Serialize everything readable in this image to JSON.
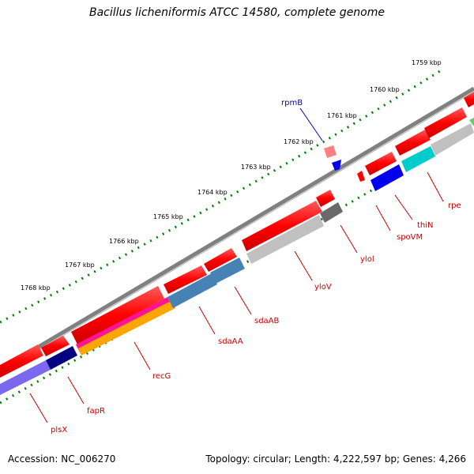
{
  "title": "Bacillus licheniformis ATCC 14580, complete genome",
  "footer": {
    "accession": "Accession: NC_006270",
    "summary": "Topology: circular; Length: 4,222,597 bp; Genes: 4,266"
  },
  "scale_ticks": [
    "1759 kbp",
    "1760 kbp",
    "1761 kbp",
    "1762 kbp",
    "1763 kbp",
    "1764 kbp",
    "1765 kbp",
    "1766 kbp",
    "1767 kbp",
    "1768 kbp"
  ],
  "genes": [
    {
      "name": "rpmB",
      "color": "#0000cc",
      "label_color": "#0000cc"
    },
    {
      "name": "rpe",
      "color": "#cc0000",
      "label_color": "#cc0000"
    },
    {
      "name": "thiN",
      "color": "#cc0000",
      "label_color": "#cc0000"
    },
    {
      "name": "spoVM",
      "color": "#cc0000",
      "label_color": "#cc0000"
    },
    {
      "name": "ylol",
      "color": "#cc0000",
      "label_color": "#cc0000"
    },
    {
      "name": "yloV",
      "color": "#cc0000",
      "label_color": "#cc0000"
    },
    {
      "name": "sdaAB",
      "color": "#cc0000",
      "label_color": "#cc0000"
    },
    {
      "name": "sdaAA",
      "color": "#cc0000",
      "label_color": "#cc0000"
    },
    {
      "name": "recG",
      "color": "#cc0000",
      "label_color": "#cc0000"
    },
    {
      "name": "fapR",
      "color": "#cc0000",
      "label_color": "#cc0000"
    },
    {
      "name": "plsX",
      "color": "#cc0000",
      "label_color": "#cc0000"
    }
  ],
  "colors": {
    "backbone": "#808080",
    "forward_strand": "#ff0000",
    "reverse_blue": "#0000ee",
    "navy": "#000080",
    "lavender": "#7b68ee",
    "magenta": "#ff1493",
    "orange": "#ffa500",
    "steelblue": "#4682b4",
    "lightgray": "#c0c0c0",
    "darkgray": "#696969",
    "cyan": "#00cccc",
    "tick_green": "#008000"
  }
}
